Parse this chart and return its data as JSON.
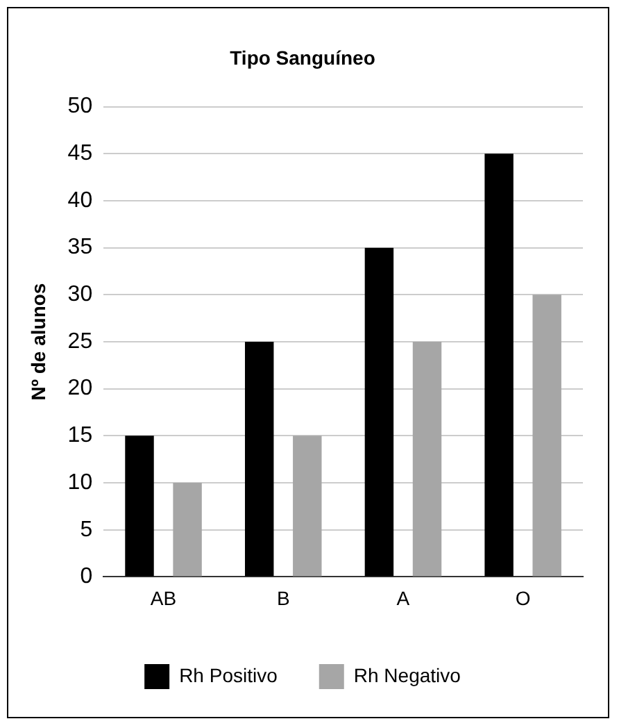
{
  "chart_data": {
    "type": "bar",
    "title": "Tipo Sanguíneo",
    "ylabel": "Nº de alunos",
    "categories": [
      "AB",
      "B",
      "A",
      "O"
    ],
    "series": [
      {
        "name": "Rh Positivo",
        "color": "#000000",
        "values": [
          15,
          25,
          35,
          45
        ]
      },
      {
        "name": "Rh Negativo",
        "color": "#a6a6a6",
        "values": [
          10,
          15,
          25,
          30
        ]
      }
    ],
    "ylim": [
      0,
      50
    ],
    "yticks": [
      0,
      5,
      10,
      15,
      20,
      25,
      30,
      35,
      40,
      45,
      50
    ],
    "grid": "y",
    "legend": "bottom"
  }
}
